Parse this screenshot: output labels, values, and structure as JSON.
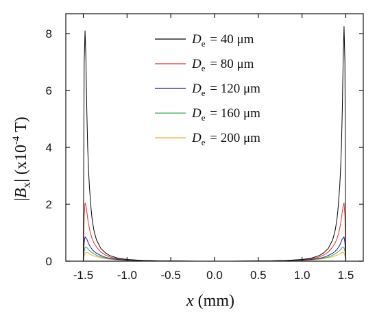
{
  "chart_data": {
    "type": "line",
    "xlabel": "x (mm)",
    "ylabel": "|Bx| (x10-4 T)",
    "xlim": [
      -1.7,
      1.7
    ],
    "ylim": [
      0,
      8.7
    ],
    "xticks": [
      -1.5,
      -1.0,
      -0.5,
      0.0,
      0.5,
      1.0,
      1.5
    ],
    "xtick_labels": [
      "-1.5",
      "-1.0",
      "-0.5",
      "0.0",
      "0.5",
      "1.0",
      "1.5"
    ],
    "yticks": [
      0,
      2,
      4,
      6,
      8
    ],
    "ytick_labels": [
      "0",
      "2",
      "4",
      "6",
      "8"
    ],
    "grid": false,
    "legend_position": "top-center",
    "series": [
      {
        "name": "De = 40 μm",
        "legend_prefix": "D",
        "legend_sub": "e",
        "legend_value": "=   40 μm",
        "color": "#000000",
        "x": [
          -1.5,
          -1.49,
          -1.48,
          -1.47,
          -1.46,
          -1.45,
          -1.44,
          -1.43,
          -1.42,
          -1.41,
          -1.4,
          -1.38,
          -1.35,
          -1.3,
          -1.25,
          -1.2,
          -1.1,
          -1.0,
          -0.8,
          -0.6,
          -0.4,
          -0.2,
          0.0,
          0.2,
          0.4,
          0.6,
          0.8,
          1.0,
          1.1,
          1.2,
          1.25,
          1.3,
          1.35,
          1.38,
          1.4,
          1.41,
          1.42,
          1.43,
          1.44,
          1.45,
          1.46,
          1.47,
          1.48,
          1.49,
          1.5
        ],
        "y": [
          0.0,
          7.0,
          8.1,
          7.1,
          5.3,
          4.0,
          3.2,
          2.6,
          2.2,
          1.8,
          1.5,
          1.1,
          0.75,
          0.45,
          0.3,
          0.2,
          0.1,
          0.06,
          0.02,
          0.01,
          0.01,
          0.0,
          0.0,
          0.0,
          0.01,
          0.01,
          0.02,
          0.06,
          0.1,
          0.2,
          0.3,
          0.45,
          0.75,
          1.1,
          1.5,
          1.8,
          2.2,
          2.6,
          3.2,
          4.0,
          5.3,
          7.1,
          8.25,
          7.0,
          0.0
        ]
      },
      {
        "name": "De = 80 μm",
        "legend_prefix": "D",
        "legend_sub": "e",
        "legend_value": "=   80 μm",
        "color": "#e0302f",
        "x": [
          -1.5,
          -1.49,
          -1.48,
          -1.47,
          -1.46,
          -1.45,
          -1.44,
          -1.42,
          -1.4,
          -1.38,
          -1.35,
          -1.3,
          -1.25,
          -1.2,
          -1.1,
          -1.0,
          -0.8,
          -0.6,
          -0.4,
          -0.2,
          0.0,
          0.2,
          0.4,
          0.6,
          0.8,
          1.0,
          1.1,
          1.2,
          1.25,
          1.3,
          1.35,
          1.38,
          1.4,
          1.42,
          1.44,
          1.45,
          1.46,
          1.47,
          1.48,
          1.49,
          1.5
        ],
        "y": [
          0.0,
          1.6,
          2.05,
          1.95,
          1.75,
          1.5,
          1.3,
          1.0,
          0.8,
          0.65,
          0.5,
          0.32,
          0.22,
          0.15,
          0.08,
          0.05,
          0.02,
          0.01,
          0.0,
          0.0,
          0.0,
          0.0,
          0.0,
          0.01,
          0.02,
          0.05,
          0.08,
          0.15,
          0.22,
          0.32,
          0.5,
          0.65,
          0.8,
          1.0,
          1.3,
          1.5,
          1.75,
          1.95,
          2.05,
          1.6,
          0.0
        ]
      },
      {
        "name": "De = 120 μm",
        "legend_prefix": "D",
        "legend_sub": "e",
        "legend_value": "= 120 μm",
        "color": "#1a1a8c",
        "x": [
          -1.5,
          -1.49,
          -1.48,
          -1.47,
          -1.46,
          -1.45,
          -1.44,
          -1.42,
          -1.4,
          -1.38,
          -1.35,
          -1.3,
          -1.25,
          -1.2,
          -1.1,
          -1.0,
          -0.8,
          -0.6,
          -0.4,
          -0.2,
          0.0,
          0.2,
          0.4,
          0.6,
          0.8,
          1.0,
          1.1,
          1.2,
          1.25,
          1.3,
          1.35,
          1.38,
          1.4,
          1.42,
          1.44,
          1.45,
          1.46,
          1.47,
          1.48,
          1.49,
          1.5
        ],
        "y": [
          0.0,
          0.65,
          0.85,
          0.82,
          0.78,
          0.7,
          0.62,
          0.5,
          0.42,
          0.35,
          0.28,
          0.2,
          0.14,
          0.1,
          0.06,
          0.04,
          0.02,
          0.01,
          0.0,
          0.0,
          0.0,
          0.0,
          0.0,
          0.01,
          0.02,
          0.04,
          0.06,
          0.1,
          0.14,
          0.2,
          0.28,
          0.35,
          0.42,
          0.5,
          0.62,
          0.7,
          0.78,
          0.82,
          0.85,
          0.65,
          0.0
        ]
      },
      {
        "name": "De = 160 μm",
        "legend_prefix": "D",
        "legend_sub": "e",
        "legend_value": "= 160 μm",
        "color": "#3aa85a",
        "x": [
          -1.5,
          -1.49,
          -1.48,
          -1.47,
          -1.46,
          -1.45,
          -1.44,
          -1.42,
          -1.4,
          -1.38,
          -1.35,
          -1.3,
          -1.25,
          -1.2,
          -1.1,
          -1.0,
          -0.8,
          -0.6,
          -0.4,
          -0.2,
          0.0,
          0.2,
          0.4,
          0.6,
          0.8,
          1.0,
          1.1,
          1.2,
          1.25,
          1.3,
          1.35,
          1.38,
          1.4,
          1.42,
          1.44,
          1.45,
          1.46,
          1.47,
          1.48,
          1.49,
          1.5
        ],
        "y": [
          0.0,
          0.35,
          0.48,
          0.5,
          0.48,
          0.45,
          0.41,
          0.35,
          0.3,
          0.26,
          0.21,
          0.15,
          0.11,
          0.08,
          0.05,
          0.03,
          0.01,
          0.01,
          0.0,
          0.0,
          0.0,
          0.0,
          0.0,
          0.01,
          0.01,
          0.03,
          0.05,
          0.08,
          0.11,
          0.15,
          0.21,
          0.26,
          0.3,
          0.35,
          0.41,
          0.45,
          0.48,
          0.5,
          0.48,
          0.35,
          0.0
        ]
      },
      {
        "name": "De = 200 μm",
        "legend_prefix": "D",
        "legend_sub": "e",
        "legend_value": "= 200 μm",
        "color": "#e8b030",
        "x": [
          -1.5,
          -1.49,
          -1.48,
          -1.47,
          -1.46,
          -1.45,
          -1.44,
          -1.42,
          -1.4,
          -1.38,
          -1.35,
          -1.3,
          -1.25,
          -1.2,
          -1.1,
          -1.0,
          -0.8,
          -0.6,
          -0.4,
          -0.2,
          0.0,
          0.2,
          0.4,
          0.6,
          0.8,
          1.0,
          1.1,
          1.2,
          1.25,
          1.3,
          1.35,
          1.38,
          1.4,
          1.42,
          1.44,
          1.45,
          1.46,
          1.47,
          1.48,
          1.49,
          1.5
        ],
        "y": [
          0.0,
          0.2,
          0.28,
          0.3,
          0.3,
          0.29,
          0.27,
          0.24,
          0.21,
          0.19,
          0.16,
          0.12,
          0.09,
          0.07,
          0.04,
          0.03,
          0.01,
          0.0,
          0.0,
          0.0,
          0.0,
          0.0,
          0.0,
          0.0,
          0.01,
          0.03,
          0.04,
          0.07,
          0.09,
          0.12,
          0.16,
          0.19,
          0.21,
          0.24,
          0.27,
          0.29,
          0.3,
          0.3,
          0.28,
          0.2,
          0.0
        ]
      }
    ]
  }
}
